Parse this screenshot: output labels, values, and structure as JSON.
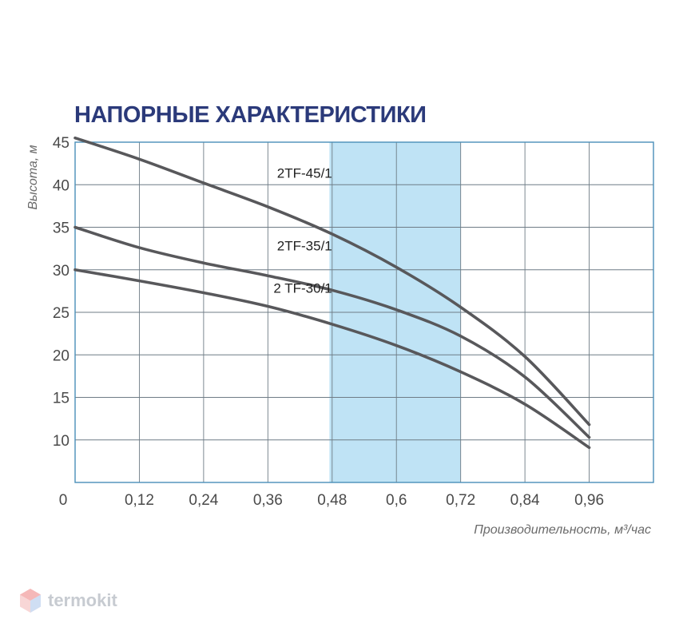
{
  "chart_data": {
    "type": "line",
    "title": "НАПОРНЫЕ ХАРАКТЕРИСТИКИ",
    "xlabel": "Производительность, м³/час",
    "ylabel": "Высота, м",
    "xlim": [
      0,
      1.08
    ],
    "ylim": [
      5,
      45
    ],
    "x_ticks": [
      "0",
      "0,12",
      "0,24",
      "0,36",
      "0,48",
      "0,6",
      "0,72",
      "0,84",
      "0,96"
    ],
    "y_ticks": [
      "10",
      "15",
      "20",
      "25",
      "30",
      "35",
      "40",
      "45"
    ],
    "grid": true,
    "highlight_band": {
      "x_from": 0.475,
      "x_to": 0.72,
      "color": "#bfe3f5"
    },
    "series": [
      {
        "name": "2TF-45/1",
        "x": [
          0,
          0.12,
          0.24,
          0.36,
          0.48,
          0.6,
          0.72,
          0.84,
          0.96
        ],
        "values": [
          45.5,
          43,
          40.2,
          37.4,
          34.2,
          30.3,
          25.6,
          19.8,
          11.8
        ]
      },
      {
        "name": "2TF-35/1",
        "x": [
          0,
          0.12,
          0.24,
          0.36,
          0.48,
          0.6,
          0.72,
          0.84,
          0.96
        ],
        "values": [
          35,
          32.6,
          30.8,
          29.3,
          27.6,
          25.3,
          22.2,
          17.4,
          10.3
        ]
      },
      {
        "name": "2 TF-30/1",
        "x": [
          0,
          0.12,
          0.24,
          0.36,
          0.48,
          0.6,
          0.72,
          0.84,
          0.96
        ],
        "values": [
          30,
          28.7,
          27.3,
          25.7,
          23.6,
          21.1,
          18,
          14.2,
          9.1
        ]
      }
    ]
  },
  "watermark": {
    "text": "termokit"
  }
}
